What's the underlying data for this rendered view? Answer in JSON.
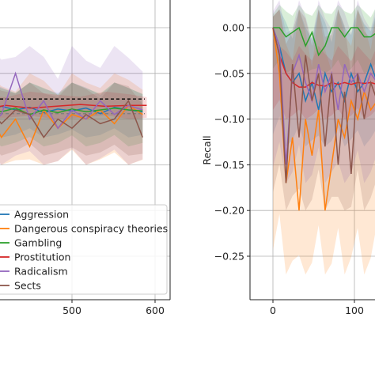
{
  "chart_data": [
    {
      "type": "line",
      "title": "",
      "xlabel": "",
      "ylabel": "",
      "x_ticks": [
        500,
        600
      ],
      "xlim": [
        330,
        610
      ],
      "ylim": [
        -0.3,
        0.03
      ],
      "grid": true,
      "legend_placement": "bottom-left",
      "legend": [
        {
          "name": "Aggression",
          "color": "#1f77b4"
        },
        {
          "name": "Dangerous conspiracy theories",
          "color": "#ff7f0e"
        },
        {
          "name": "Gambling",
          "color": "#2ca02c"
        },
        {
          "name": "Prostitution",
          "color": "#d62728"
        },
        {
          "name": "Radicalism",
          "color": "#9467bd"
        },
        {
          "name": "Sects",
          "color": "#8c564b"
        }
      ],
      "reference_lines": [
        {
          "style": "dashed",
          "color": "#000000",
          "y": -0.078
        },
        {
          "style": "dashed",
          "color": "#7f7f7f",
          "y": -0.094
        }
      ],
      "series": [
        {
          "color": "#1f77b4",
          "x": [
            330,
            347,
            364,
            381,
            398,
            415,
            432,
            449,
            466,
            483,
            500,
            517,
            534,
            551,
            568,
            585
          ],
          "y": [
            -0.09,
            -0.085,
            -0.095,
            -0.088,
            -0.092,
            -0.086,
            -0.09,
            -0.087,
            -0.093,
            -0.089,
            -0.091,
            -0.088,
            -0.094,
            -0.087,
            -0.09,
            -0.092
          ],
          "band": [
            -0.12,
            -0.06
          ]
        },
        {
          "color": "#ff7f0e",
          "x": [
            330,
            347,
            364,
            381,
            398,
            415,
            432,
            449,
            466,
            483,
            500,
            517,
            534,
            551,
            568,
            585
          ],
          "y": [
            -0.095,
            -0.09,
            -0.1,
            -0.105,
            -0.09,
            -0.12,
            -0.1,
            -0.13,
            -0.09,
            -0.11,
            -0.095,
            -0.1,
            -0.09,
            -0.105,
            -0.085,
            -0.095
          ],
          "band": [
            -0.15,
            -0.05
          ]
        },
        {
          "color": "#2ca02c",
          "x": [
            330,
            347,
            364,
            381,
            398,
            415,
            432,
            449,
            466,
            483,
            500,
            517,
            534,
            551,
            568,
            585
          ],
          "y": [
            -0.09,
            -0.12,
            -0.095,
            -0.1,
            -0.09,
            -0.092,
            -0.088,
            -0.095,
            -0.09,
            -0.093,
            -0.089,
            -0.092,
            -0.09,
            -0.088,
            -0.09,
            -0.091
          ],
          "band": [
            -0.13,
            -0.06
          ]
        },
        {
          "color": "#d62728",
          "x": [
            330,
            360,
            390,
            420,
            450,
            480,
            510,
            540,
            570,
            590
          ],
          "y": [
            -0.088,
            -0.086,
            -0.09,
            -0.085,
            -0.088,
            -0.086,
            -0.084,
            -0.086,
            -0.085,
            -0.085
          ],
          "band": [
            -0.1,
            -0.07
          ]
        },
        {
          "color": "#9467bd",
          "x": [
            330,
            347,
            364,
            381,
            398,
            415,
            432,
            449,
            466,
            483,
            500,
            517,
            534,
            551,
            568,
            585
          ],
          "y": [
            -0.085,
            -0.1,
            -0.08,
            -0.09,
            -0.11,
            -0.095,
            -0.05,
            -0.1,
            -0.08,
            -0.11,
            -0.09,
            -0.1,
            -0.08,
            -0.095,
            -0.085,
            -0.09
          ],
          "band": [
            -0.15,
            -0.02
          ]
        },
        {
          "color": "#8c564b",
          "x": [
            330,
            347,
            364,
            381,
            398,
            415,
            432,
            449,
            466,
            483,
            500,
            517,
            534,
            551,
            568,
            585
          ],
          "y": [
            -0.095,
            -0.085,
            -0.1,
            -0.09,
            -0.085,
            -0.105,
            -0.09,
            -0.095,
            -0.12,
            -0.1,
            -0.11,
            -0.095,
            -0.105,
            -0.1,
            -0.08,
            -0.12
          ],
          "band": [
            -0.14,
            -0.06
          ]
        }
      ]
    },
    {
      "type": "line",
      "title": "",
      "xlabel": "",
      "ylabel": "Recall",
      "y_ticks": [
        0.0,
        -0.05,
        -0.1,
        -0.15,
        -0.2,
        -0.25
      ],
      "y_tick_labels": [
        "0.00",
        "−0.05",
        "−0.10",
        "−0.15",
        "−0.20",
        "−0.25"
      ],
      "x_ticks": [
        0,
        100
      ],
      "xlim": [
        -30,
        140
      ],
      "ylim": [
        -0.3,
        0.03
      ],
      "grid": true,
      "series": [
        {
          "color": "#1f77b4",
          "x": [
            0,
            8,
            16,
            24,
            32,
            40,
            48,
            56,
            64,
            72,
            80,
            88,
            96,
            104,
            112,
            120,
            128,
            136
          ],
          "y": [
            0,
            -0.02,
            -0.05,
            -0.06,
            -0.05,
            -0.08,
            -0.06,
            -0.09,
            -0.05,
            -0.07,
            -0.06,
            -0.08,
            -0.05,
            -0.07,
            -0.06,
            -0.04,
            -0.06,
            -0.05
          ],
          "band": [
            -0.13,
            0.02
          ]
        },
        {
          "color": "#ff7f0e",
          "x": [
            0,
            8,
            16,
            24,
            32,
            40,
            48,
            56,
            64,
            72,
            80,
            88,
            96,
            104,
            112,
            120,
            128,
            136
          ],
          "y": [
            0,
            -0.05,
            -0.17,
            -0.12,
            -0.2,
            -0.1,
            -0.14,
            -0.09,
            -0.2,
            -0.15,
            -0.1,
            -0.12,
            -0.08,
            -0.1,
            -0.07,
            -0.09,
            -0.08,
            -0.07
          ],
          "band": [
            -0.27,
            0.02
          ]
        },
        {
          "color": "#2ca02c",
          "x": [
            0,
            8,
            16,
            24,
            32,
            40,
            48,
            56,
            64,
            72,
            80,
            88,
            96,
            104,
            112,
            120,
            128,
            136
          ],
          "y": [
            0,
            0,
            -0.01,
            -0.005,
            0,
            -0.02,
            -0.005,
            -0.03,
            -0.02,
            0,
            0,
            -0.01,
            0,
            0,
            -0.01,
            -0.01,
            -0.005,
            0
          ],
          "band": [
            -0.05,
            0.025
          ]
        },
        {
          "color": "#d62728",
          "x": [
            0,
            8,
            16,
            24,
            32,
            40,
            48,
            56,
            64,
            72,
            80,
            88,
            96,
            104,
            112,
            120,
            128,
            136
          ],
          "y": [
            0,
            -0.03,
            -0.05,
            -0.06,
            -0.065,
            -0.065,
            -0.06,
            -0.063,
            -0.064,
            -0.06,
            -0.062,
            -0.06,
            -0.062,
            -0.06,
            -0.061,
            -0.06,
            -0.062,
            -0.06
          ],
          "band": [
            -0.1,
            -0.02
          ]
        },
        {
          "color": "#9467bd",
          "x": [
            0,
            8,
            16,
            24,
            32,
            40,
            48,
            56,
            64,
            72,
            80,
            88,
            96,
            104,
            112,
            120,
            128,
            136
          ],
          "y": [
            0,
            -0.02,
            -0.15,
            -0.05,
            -0.03,
            -0.06,
            -0.08,
            -0.04,
            -0.07,
            -0.05,
            -0.09,
            -0.04,
            -0.06,
            -0.05,
            -0.07,
            -0.05,
            -0.06,
            -0.05
          ],
          "band": [
            -0.17,
            0.03
          ]
        },
        {
          "color": "#8c564b",
          "x": [
            0,
            8,
            16,
            24,
            32,
            40,
            48,
            56,
            64,
            72,
            80,
            88,
            96,
            104,
            112,
            120,
            128,
            136
          ],
          "y": [
            0,
            -0.03,
            -0.17,
            -0.04,
            -0.12,
            -0.03,
            -0.08,
            -0.05,
            -0.13,
            -0.05,
            -0.15,
            -0.07,
            -0.16,
            -0.05,
            -0.1,
            -0.06,
            -0.08,
            -0.06
          ],
          "band": [
            -0.2,
            0.02
          ]
        }
      ]
    }
  ]
}
